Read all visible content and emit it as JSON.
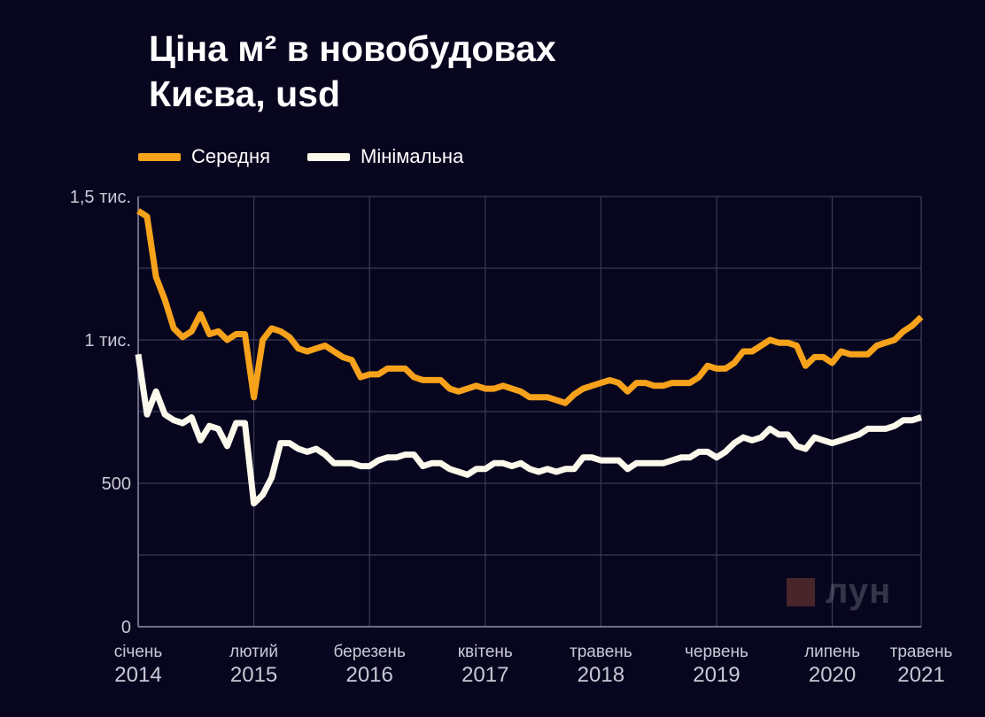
{
  "title_line1": "Ціна м² в новобудовах",
  "title_line2": "Києва, usd",
  "legend": [
    {
      "name": "Середня",
      "color": "#f7a21b"
    },
    {
      "name": "Мінімальна",
      "color": "#fbf8ec"
    }
  ],
  "logo": {
    "text": "лун",
    "icon": "lun-logo-square"
  },
  "chart_data": {
    "type": "line",
    "title": "Ціна м² в новобудовах Києва, usd",
    "ylim": [
      0,
      1500
    ],
    "y_ticks": [
      {
        "value": 0,
        "label": "0"
      },
      {
        "value": 500,
        "label": "500"
      },
      {
        "value": 1000,
        "label": "1 тис."
      },
      {
        "value": 1500,
        "label": "1,5 тис."
      }
    ],
    "grid": true,
    "legend_position": "top-left",
    "x_start": "2014-01",
    "x_end": "2021-05",
    "x_ticks": [
      {
        "date": "2014-01",
        "month": "січень",
        "year": "2014"
      },
      {
        "date": "2015-02",
        "month": "лютий",
        "year": "2015"
      },
      {
        "date": "2016-03",
        "month": "березень",
        "year": "2016"
      },
      {
        "date": "2017-04",
        "month": "квітень",
        "year": "2017"
      },
      {
        "date": "2018-05",
        "month": "травень",
        "year": "2018"
      },
      {
        "date": "2019-06",
        "month": "червень",
        "year": "2019"
      },
      {
        "date": "2020-07",
        "month": "липень",
        "year": "2020"
      },
      {
        "date": "2021-05",
        "month": "травень",
        "year": "2021"
      }
    ],
    "series": [
      {
        "name": "Середня",
        "color": "#f7a21b",
        "points": [
          [
            "2014-01",
            1450
          ],
          [
            "2014-02",
            1430
          ],
          [
            "2014-03",
            1220
          ],
          [
            "2014-04",
            1140
          ],
          [
            "2014-05",
            1040
          ],
          [
            "2014-06",
            1010
          ],
          [
            "2014-07",
            1030
          ],
          [
            "2014-08",
            1090
          ],
          [
            "2014-09",
            1020
          ],
          [
            "2014-10",
            1030
          ],
          [
            "2014-11",
            1000
          ],
          [
            "2014-12",
            1020
          ],
          [
            "2015-01",
            1020
          ],
          [
            "2015-02",
            800
          ],
          [
            "2015-03",
            1000
          ],
          [
            "2015-04",
            1040
          ],
          [
            "2015-05",
            1030
          ],
          [
            "2015-06",
            1010
          ],
          [
            "2015-07",
            970
          ],
          [
            "2015-08",
            960
          ],
          [
            "2015-09",
            970
          ],
          [
            "2015-10",
            980
          ],
          [
            "2015-11",
            960
          ],
          [
            "2015-12",
            940
          ],
          [
            "2016-01",
            930
          ],
          [
            "2016-02",
            870
          ],
          [
            "2016-03",
            880
          ],
          [
            "2016-04",
            880
          ],
          [
            "2016-05",
            900
          ],
          [
            "2016-06",
            900
          ],
          [
            "2016-07",
            900
          ],
          [
            "2016-08",
            870
          ],
          [
            "2016-09",
            860
          ],
          [
            "2016-10",
            860
          ],
          [
            "2016-11",
            860
          ],
          [
            "2016-12",
            830
          ],
          [
            "2017-01",
            820
          ],
          [
            "2017-02",
            830
          ],
          [
            "2017-03",
            840
          ],
          [
            "2017-04",
            830
          ],
          [
            "2017-05",
            830
          ],
          [
            "2017-06",
            840
          ],
          [
            "2017-07",
            830
          ],
          [
            "2017-08",
            820
          ],
          [
            "2017-09",
            800
          ],
          [
            "2017-10",
            800
          ],
          [
            "2017-11",
            800
          ],
          [
            "2017-12",
            790
          ],
          [
            "2018-01",
            780
          ],
          [
            "2018-02",
            810
          ],
          [
            "2018-03",
            830
          ],
          [
            "2018-04",
            840
          ],
          [
            "2018-05",
            850
          ],
          [
            "2018-06",
            860
          ],
          [
            "2018-07",
            850
          ],
          [
            "2018-08",
            820
          ],
          [
            "2018-09",
            850
          ],
          [
            "2018-10",
            850
          ],
          [
            "2018-11",
            840
          ],
          [
            "2018-12",
            840
          ],
          [
            "2019-01",
            850
          ],
          [
            "2019-02",
            850
          ],
          [
            "2019-03",
            850
          ],
          [
            "2019-04",
            870
          ],
          [
            "2019-05",
            910
          ],
          [
            "2019-06",
            900
          ],
          [
            "2019-07",
            900
          ],
          [
            "2019-08",
            920
          ],
          [
            "2019-09",
            960
          ],
          [
            "2019-10",
            960
          ],
          [
            "2019-11",
            980
          ],
          [
            "2019-12",
            1000
          ],
          [
            "2020-01",
            990
          ],
          [
            "2020-02",
            990
          ],
          [
            "2020-03",
            980
          ],
          [
            "2020-04",
            910
          ],
          [
            "2020-05",
            940
          ],
          [
            "2020-06",
            940
          ],
          [
            "2020-07",
            920
          ],
          [
            "2020-08",
            960
          ],
          [
            "2020-09",
            950
          ],
          [
            "2020-10",
            950
          ],
          [
            "2020-11",
            950
          ],
          [
            "2020-12",
            980
          ],
          [
            "2021-01",
            990
          ],
          [
            "2021-02",
            1000
          ],
          [
            "2021-03",
            1030
          ],
          [
            "2021-04",
            1050
          ],
          [
            "2021-05",
            1080
          ]
        ]
      },
      {
        "name": "Мінімальна",
        "color": "#fbf8ec",
        "points": [
          [
            "2014-01",
            950
          ],
          [
            "2014-02",
            740
          ],
          [
            "2014-03",
            820
          ],
          [
            "2014-04",
            740
          ],
          [
            "2014-05",
            720
          ],
          [
            "2014-06",
            710
          ],
          [
            "2014-07",
            730
          ],
          [
            "2014-08",
            650
          ],
          [
            "2014-09",
            700
          ],
          [
            "2014-10",
            690
          ],
          [
            "2014-11",
            630
          ],
          [
            "2014-12",
            710
          ],
          [
            "2015-01",
            710
          ],
          [
            "2015-02",
            430
          ],
          [
            "2015-03",
            460
          ],
          [
            "2015-04",
            520
          ],
          [
            "2015-05",
            640
          ],
          [
            "2015-06",
            640
          ],
          [
            "2015-07",
            620
          ],
          [
            "2015-08",
            610
          ],
          [
            "2015-09",
            620
          ],
          [
            "2015-10",
            600
          ],
          [
            "2015-11",
            570
          ],
          [
            "2015-12",
            570
          ],
          [
            "2016-01",
            570
          ],
          [
            "2016-02",
            560
          ],
          [
            "2016-03",
            560
          ],
          [
            "2016-04",
            580
          ],
          [
            "2016-05",
            590
          ],
          [
            "2016-06",
            590
          ],
          [
            "2016-07",
            600
          ],
          [
            "2016-08",
            600
          ],
          [
            "2016-09",
            560
          ],
          [
            "2016-10",
            570
          ],
          [
            "2016-11",
            570
          ],
          [
            "2016-12",
            550
          ],
          [
            "2017-01",
            540
          ],
          [
            "2017-02",
            530
          ],
          [
            "2017-03",
            550
          ],
          [
            "2017-04",
            550
          ],
          [
            "2017-05",
            570
          ],
          [
            "2017-06",
            570
          ],
          [
            "2017-07",
            560
          ],
          [
            "2017-08",
            570
          ],
          [
            "2017-09",
            550
          ],
          [
            "2017-10",
            540
          ],
          [
            "2017-11",
            550
          ],
          [
            "2017-12",
            540
          ],
          [
            "2018-01",
            550
          ],
          [
            "2018-02",
            550
          ],
          [
            "2018-03",
            590
          ],
          [
            "2018-04",
            590
          ],
          [
            "2018-05",
            580
          ],
          [
            "2018-06",
            580
          ],
          [
            "2018-07",
            580
          ],
          [
            "2018-08",
            550
          ],
          [
            "2018-09",
            570
          ],
          [
            "2018-10",
            570
          ],
          [
            "2018-11",
            570
          ],
          [
            "2018-12",
            570
          ],
          [
            "2019-01",
            580
          ],
          [
            "2019-02",
            590
          ],
          [
            "2019-03",
            590
          ],
          [
            "2019-04",
            610
          ],
          [
            "2019-05",
            610
          ],
          [
            "2019-06",
            590
          ],
          [
            "2019-07",
            610
          ],
          [
            "2019-08",
            640
          ],
          [
            "2019-09",
            660
          ],
          [
            "2019-10",
            650
          ],
          [
            "2019-11",
            660
          ],
          [
            "2019-12",
            690
          ],
          [
            "2020-01",
            670
          ],
          [
            "2020-02",
            670
          ],
          [
            "2020-03",
            630
          ],
          [
            "2020-04",
            620
          ],
          [
            "2020-05",
            660
          ],
          [
            "2020-06",
            650
          ],
          [
            "2020-07",
            640
          ],
          [
            "2020-08",
            650
          ],
          [
            "2020-09",
            660
          ],
          [
            "2020-10",
            670
          ],
          [
            "2020-11",
            690
          ],
          [
            "2020-12",
            690
          ],
          [
            "2021-01",
            690
          ],
          [
            "2021-02",
            700
          ],
          [
            "2021-03",
            720
          ],
          [
            "2021-04",
            720
          ],
          [
            "2021-05",
            730
          ]
        ]
      }
    ]
  }
}
